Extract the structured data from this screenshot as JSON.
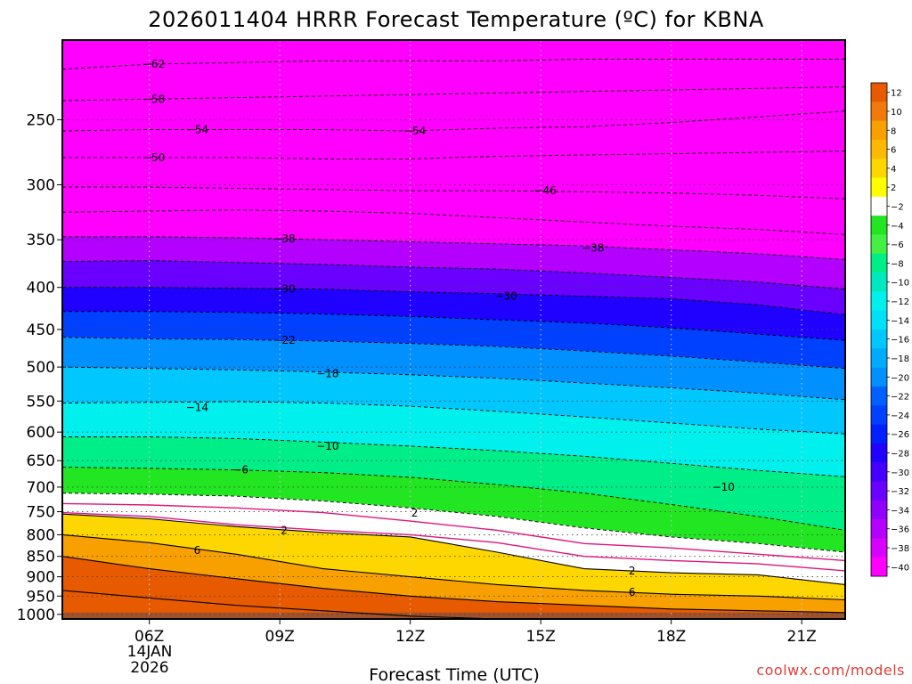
{
  "chart_data": {
    "type": "heatmap",
    "title": "2026011404 HRRR Forecast Temperature (ºC) for KBNA",
    "xlabel": "Forecast Time (UTC)",
    "ylabel": "",
    "x_ticks": [
      "06Z",
      "09Z",
      "12Z",
      "15Z",
      "18Z",
      "21Z"
    ],
    "x_tick_values": [
      6,
      9,
      12,
      15,
      18,
      21
    ],
    "x_sub_labels": [
      "14JAN",
      "2026"
    ],
    "xlim": [
      4,
      22
    ],
    "y_ticks": [
      "250",
      "300",
      "350",
      "400",
      "450",
      "500",
      "550",
      "600",
      "650",
      "700",
      "750",
      "800",
      "850",
      "900",
      "950",
      "1000"
    ],
    "y_tick_values": [
      250,
      300,
      350,
      400,
      450,
      500,
      550,
      600,
      650,
      700,
      750,
      800,
      850,
      900,
      950,
      1000
    ],
    "ylim": [
      200,
      1013
    ],
    "y_scale": "log-pressure",
    "y_reversed": true,
    "grid": true,
    "colorbar": {
      "levels": [
        12,
        10,
        8,
        6,
        4,
        2,
        -2,
        -4,
        -6,
        -8,
        -10,
        -12,
        -14,
        -16,
        -18,
        -20,
        -22,
        -24,
        -26,
        -28,
        -30,
        -32,
        -34,
        -36,
        -38,
        -40
      ],
      "labels": [
        "12",
        "10",
        "8",
        "6",
        "4",
        "2",
        "−2",
        "−4",
        "−6",
        "−8",
        "−10",
        "−12",
        "−14",
        "−16",
        "−18",
        "−20",
        "−22",
        "−24",
        "−26",
        "−28",
        "−30",
        "−32",
        "−34",
        "−36",
        "−38",
        "−40"
      ],
      "colors": [
        "#e85a00",
        "#f27a0a",
        "#f8a000",
        "#ffb900",
        "#ffd700",
        "#ffff00",
        "#ffffff",
        "#22e622",
        "#44f044",
        "#00ee88",
        "#00e8c0",
        "#00f0ee",
        "#00e0f8",
        "#00c8ff",
        "#00aaff",
        "#0090ff",
        "#0060ff",
        "#0040ff",
        "#0020ff",
        "#2000ff",
        "#4400ff",
        "#6a00ff",
        "#9000ff",
        "#b400ff",
        "#d800ff",
        "#ff00ff"
      ]
    },
    "ground_color": "#a0522d",
    "x_profile": [
      4,
      6,
      8,
      10,
      12,
      14,
      16,
      18,
      20,
      22
    ],
    "isotherms": [
      {
        "value": -62,
        "p": [
          217,
          214,
          213,
          212,
          212,
          212,
          211,
          211,
          211,
          211
        ]
      },
      {
        "value": -58,
        "p": [
          237,
          236,
          235,
          234,
          233,
          232,
          231,
          230,
          229,
          228
        ]
      },
      {
        "value": -54,
        "p": [
          258,
          257,
          257,
          257,
          258,
          256,
          255,
          252,
          248,
          244
        ]
      },
      {
        "value": -50,
        "p": [
          278,
          278,
          278,
          279,
          279,
          277,
          276,
          275,
          274,
          273
        ]
      },
      {
        "value": -46,
        "p": [
          302,
          302,
          303,
          304,
          305,
          305,
          306,
          307,
          309,
          312
        ]
      },
      {
        "value": -42,
        "p": [
          324,
          323,
          322,
          323,
          325,
          329,
          333,
          337,
          340,
          345
        ]
      },
      {
        "value": -38,
        "p": [
          347,
          347,
          348,
          350,
          352,
          354,
          356,
          360,
          364,
          370
        ]
      },
      {
        "value": -34,
        "p": [
          372,
          371,
          373,
          375,
          378,
          380,
          384,
          389,
          394,
          402
        ]
      },
      {
        "value": -30,
        "p": [
          400,
          400,
          401,
          402,
          405,
          407,
          410,
          413,
          420,
          432
        ]
      },
      {
        "value": -26,
        "p": [
          428,
          428,
          429,
          431,
          434,
          438,
          442,
          448,
          456,
          464
        ]
      },
      {
        "value": -22,
        "p": [
          460,
          462,
          463,
          465,
          468,
          472,
          478,
          485,
          493,
          502
        ]
      },
      {
        "value": -18,
        "p": [
          500,
          502,
          504,
          507,
          511,
          516,
          523,
          530,
          538,
          548
        ]
      },
      {
        "value": -14,
        "p": [
          553,
          552,
          551,
          553,
          558,
          566,
          575,
          585,
          595,
          603
        ]
      },
      {
        "value": -10,
        "p": [
          608,
          608,
          611,
          617,
          624,
          632,
          642,
          655,
          668,
          680
        ]
      },
      {
        "value": -6,
        "p": [
          662,
          664,
          667,
          672,
          681,
          695,
          712,
          735,
          760,
          790
        ]
      },
      {
        "value": -2,
        "p": [
          712,
          714,
          718,
          728,
          742,
          760,
          785,
          805,
          820,
          840
        ]
      },
      {
        "value": 2,
        "p": [
          755,
          765,
          782,
          795,
          805,
          840,
          880,
          890,
          895,
          920
        ]
      },
      {
        "value": 6,
        "p": [
          800,
          818,
          845,
          880,
          900,
          920,
          935,
          945,
          950,
          960
        ]
      },
      {
        "value": 10,
        "p": [
          850,
          880,
          905,
          930,
          950,
          965,
          975,
          985,
          990,
          995
        ]
      },
      {
        "value": 14,
        "p": [
          935,
          955,
          975,
          990,
          1005,
          1013,
          1013,
          1013,
          1013,
          1013
        ]
      }
    ],
    "freezing_lines": [
      {
        "value": 0,
        "p": [
          733,
          736,
          742,
          752,
          770,
          790,
          820,
          830,
          845,
          860
        ]
      },
      {
        "value": 0,
        "p": [
          752,
          760,
          778,
          790,
          800,
          818,
          850,
          860,
          868,
          885
        ]
      }
    ],
    "isotherm_labels": [
      {
        "text": "−62",
        "x": 6.1,
        "p": 214
      },
      {
        "text": "−58",
        "x": 6.1,
        "p": 236
      },
      {
        "text": "−54",
        "x": 7.1,
        "p": 257
      },
      {
        "text": "−54",
        "x": 12.1,
        "p": 258
      },
      {
        "text": "−50",
        "x": 6.1,
        "p": 278
      },
      {
        "text": "−46",
        "x": 15.1,
        "p": 305
      },
      {
        "text": "−38",
        "x": 9.1,
        "p": 349
      },
      {
        "text": "−38",
        "x": 16.2,
        "p": 358
      },
      {
        "text": "−30",
        "x": 9.1,
        "p": 402
      },
      {
        "text": "−30",
        "x": 14.2,
        "p": 410
      },
      {
        "text": "−22",
        "x": 9.1,
        "p": 464
      },
      {
        "text": "−18",
        "x": 10.1,
        "p": 509
      },
      {
        "text": "−14",
        "x": 7.1,
        "p": 560
      },
      {
        "text": "−10",
        "x": 10.1,
        "p": 624
      },
      {
        "text": "−10",
        "x": 19.2,
        "p": 700
      },
      {
        "text": "−6",
        "x": 8.1,
        "p": 667
      },
      {
        "text": "2",
        "x": 9.1,
        "p": 790
      },
      {
        "text": "2",
        "x": 12.1,
        "p": 753
      },
      {
        "text": "2",
        "x": 17.1,
        "p": 885
      },
      {
        "text": "6",
        "x": 7.1,
        "p": 836
      },
      {
        "text": "6",
        "x": 17.1,
        "p": 940
      }
    ]
  },
  "footer": {
    "credit": "coolwx.com/models"
  }
}
